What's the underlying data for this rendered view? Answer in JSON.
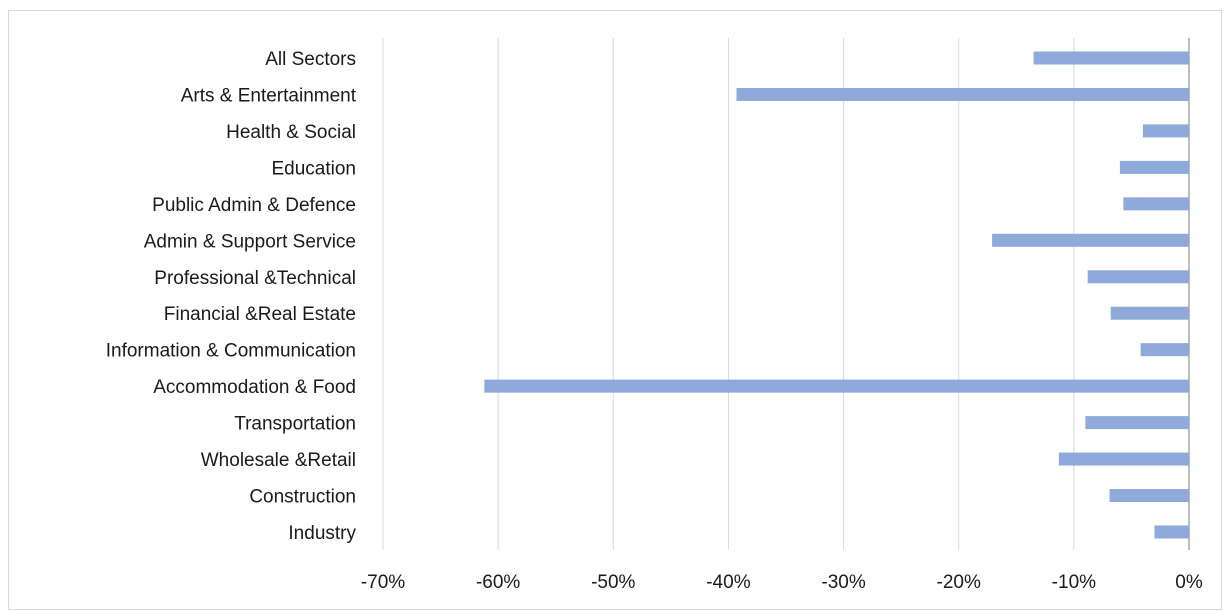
{
  "chart_data": {
    "type": "bar",
    "orientation": "horizontal",
    "categories": [
      "All Sectors",
      "Arts & Entertainment",
      "Health & Social",
      "Education",
      "Public Admin & Defence",
      "Admin & Support Service",
      "Professional &Technical",
      "Financial &Real Estate",
      "Information & Communication",
      "Accommodation & Food",
      "Transportation",
      "Wholesale &Retail",
      "Construction",
      "Industry"
    ],
    "values": [
      -0.135,
      -0.393,
      -0.04,
      -0.06,
      -0.057,
      -0.171,
      -0.088,
      -0.068,
      -0.042,
      -0.612,
      -0.09,
      -0.113,
      -0.069,
      -0.03
    ],
    "title": "",
    "xlabel": "",
    "ylabel": "",
    "xlim": [
      -0.7,
      0
    ],
    "x_ticks": [
      -0.7,
      -0.6,
      -0.5,
      -0.4,
      -0.3,
      -0.2,
      -0.1,
      0
    ],
    "x_tick_labels": [
      "-70%",
      "-60%",
      "-50%",
      "-40%",
      "-30%",
      "-20%",
      "-10%",
      "0%"
    ],
    "grid": "vertical",
    "legend": "none",
    "colors": {
      "bar": "#8eaadb",
      "grid": "#d9d9d9",
      "text": "#1a1a1a"
    }
  }
}
